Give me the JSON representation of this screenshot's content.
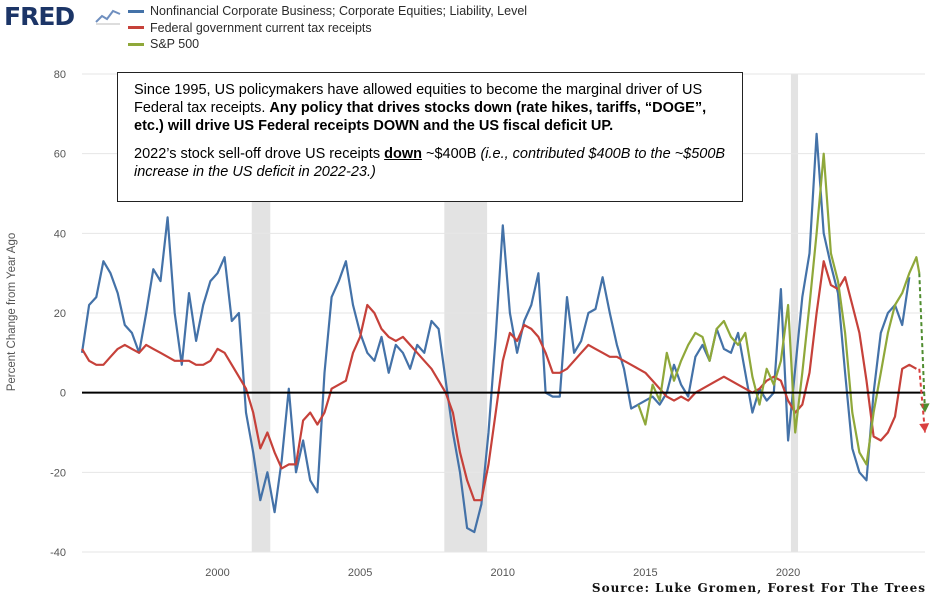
{
  "logo": {
    "text": "FRED"
  },
  "source": "Source: Luke Gromen, Forest For The Trees",
  "annotation": {
    "p1_plain": "Since 1995, US policymakers have allowed equities to become the marginal driver of US Federal tax receipts.  ",
    "p1_bold": "Any policy that drives stocks down (rate hikes, tariffs, “DOGE”, etc.) will drive US Federal receipts DOWN and the US fiscal deficit UP.",
    "p2_a": "2022’s stock sell-off drove US receipts ",
    "p2_u": "down",
    "p2_b": " ~$400B ",
    "p2_i": "(i.e., contributed $400B to the ~$500B increase in the US deficit in 2022-23.)"
  },
  "chart_data": {
    "type": "line",
    "title": "",
    "xlabel": "",
    "ylabel": "Percent Change from Year Ago",
    "xlim": [
      1995.25,
      2024.8
    ],
    "ylim": [
      -40,
      80
    ],
    "x_ticks": [
      2000,
      2005,
      2010,
      2015,
      2020
    ],
    "y_ticks": [
      -40,
      -20,
      0,
      20,
      40,
      60,
      80
    ],
    "zero_line": true,
    "recessions": [
      [
        2001.2,
        2001.85
      ],
      [
        2007.95,
        2009.45
      ],
      [
        2020.1,
        2020.35
      ]
    ],
    "series": [
      {
        "name": "Nonfinancial Corporate Business; Corporate Equities; Liability, Level",
        "color": "#4472a8",
        "points": [
          [
            1995.25,
            10
          ],
          [
            1995.5,
            22
          ],
          [
            1995.75,
            24
          ],
          [
            1996,
            33
          ],
          [
            1996.25,
            30
          ],
          [
            1996.5,
            25
          ],
          [
            1996.75,
            17
          ],
          [
            1997,
            15
          ],
          [
            1997.25,
            10
          ],
          [
            1997.5,
            20
          ],
          [
            1997.75,
            31
          ],
          [
            1998,
            28
          ],
          [
            1998.25,
            44
          ],
          [
            1998.5,
            20
          ],
          [
            1998.75,
            7
          ],
          [
            1999,
            25
          ],
          [
            1999.25,
            13
          ],
          [
            1999.5,
            22
          ],
          [
            1999.75,
            28
          ],
          [
            2000,
            30
          ],
          [
            2000.25,
            34
          ],
          [
            2000.5,
            18
          ],
          [
            2000.75,
            20
          ],
          [
            2001,
            -5
          ],
          [
            2001.25,
            -15
          ],
          [
            2001.5,
            -27
          ],
          [
            2001.75,
            -20
          ],
          [
            2002,
            -30
          ],
          [
            2002.25,
            -17
          ],
          [
            2002.5,
            1
          ],
          [
            2002.75,
            -20
          ],
          [
            2003,
            -12
          ],
          [
            2003.25,
            -22
          ],
          [
            2003.5,
            -25
          ],
          [
            2003.75,
            5
          ],
          [
            2004,
            24
          ],
          [
            2004.25,
            28
          ],
          [
            2004.5,
            33
          ],
          [
            2004.75,
            22
          ],
          [
            2005,
            15
          ],
          [
            2005.25,
            10
          ],
          [
            2005.5,
            8
          ],
          [
            2005.75,
            14
          ],
          [
            2006,
            5
          ],
          [
            2006.25,
            12
          ],
          [
            2006.5,
            10
          ],
          [
            2006.75,
            6
          ],
          [
            2007,
            12
          ],
          [
            2007.25,
            10
          ],
          [
            2007.5,
            18
          ],
          [
            2007.75,
            16
          ],
          [
            2008,
            3
          ],
          [
            2008.25,
            -10
          ],
          [
            2008.5,
            -20
          ],
          [
            2008.75,
            -34
          ],
          [
            2009,
            -35
          ],
          [
            2009.25,
            -28
          ],
          [
            2009.5,
            -10
          ],
          [
            2009.75,
            14
          ],
          [
            2010,
            42
          ],
          [
            2010.25,
            20
          ],
          [
            2010.5,
            10
          ],
          [
            2010.75,
            18
          ],
          [
            2011,
            22
          ],
          [
            2011.25,
            30
          ],
          [
            2011.5,
            0
          ],
          [
            2011.75,
            -1
          ],
          [
            2012,
            -1
          ],
          [
            2012.25,
            24
          ],
          [
            2012.5,
            10
          ],
          [
            2012.75,
            13
          ],
          [
            2013,
            20
          ],
          [
            2013.25,
            21
          ],
          [
            2013.5,
            29
          ],
          [
            2013.75,
            20
          ],
          [
            2014,
            12
          ],
          [
            2014.25,
            6
          ],
          [
            2014.5,
            -4
          ],
          [
            2014.75,
            -3
          ],
          [
            2015,
            -2
          ],
          [
            2015.25,
            -1
          ],
          [
            2015.5,
            -3
          ],
          [
            2015.75,
            0
          ],
          [
            2016,
            7
          ],
          [
            2016.25,
            2
          ],
          [
            2016.5,
            -1
          ],
          [
            2016.75,
            9
          ],
          [
            2017,
            12
          ],
          [
            2017.25,
            8
          ],
          [
            2017.5,
            16
          ],
          [
            2017.75,
            11
          ],
          [
            2018,
            10
          ],
          [
            2018.25,
            15
          ],
          [
            2018.5,
            5
          ],
          [
            2018.75,
            -5
          ],
          [
            2019,
            1
          ],
          [
            2019.25,
            -2
          ],
          [
            2019.5,
            0
          ],
          [
            2019.75,
            26
          ],
          [
            2020,
            -12
          ],
          [
            2020.25,
            6
          ],
          [
            2020.5,
            24
          ],
          [
            2020.75,
            35
          ],
          [
            2021,
            65
          ],
          [
            2021.25,
            40
          ],
          [
            2021.5,
            32
          ],
          [
            2021.75,
            25
          ],
          [
            2022,
            5
          ],
          [
            2022.25,
            -14
          ],
          [
            2022.5,
            -20
          ],
          [
            2022.75,
            -22
          ],
          [
            2023,
            0
          ],
          [
            2023.25,
            15
          ],
          [
            2023.5,
            20
          ],
          [
            2023.75,
            22
          ],
          [
            2024,
            17
          ],
          [
            2024.25,
            29
          ]
        ]
      },
      {
        "name": "Federal government current tax receipts",
        "color": "#c6413a",
        "points": [
          [
            1995.25,
            11
          ],
          [
            1995.5,
            8
          ],
          [
            1995.75,
            7
          ],
          [
            1996,
            7
          ],
          [
            1996.25,
            9
          ],
          [
            1996.5,
            11
          ],
          [
            1996.75,
            12
          ],
          [
            1997,
            11
          ],
          [
            1997.25,
            10
          ],
          [
            1997.5,
            12
          ],
          [
            1997.75,
            11
          ],
          [
            1998,
            10
          ],
          [
            1998.25,
            9
          ],
          [
            1998.5,
            8
          ],
          [
            1998.75,
            8
          ],
          [
            1999,
            8
          ],
          [
            1999.25,
            7
          ],
          [
            1999.5,
            7
          ],
          [
            1999.75,
            8
          ],
          [
            2000,
            11
          ],
          [
            2000.25,
            10
          ],
          [
            2000.5,
            7
          ],
          [
            2000.75,
            4
          ],
          [
            2001,
            1
          ],
          [
            2001.25,
            -5
          ],
          [
            2001.5,
            -14
          ],
          [
            2001.75,
            -10
          ],
          [
            2002,
            -15
          ],
          [
            2002.25,
            -19
          ],
          [
            2002.5,
            -18
          ],
          [
            2002.75,
            -18
          ],
          [
            2003,
            -7
          ],
          [
            2003.25,
            -5
          ],
          [
            2003.5,
            -8
          ],
          [
            2003.75,
            -5
          ],
          [
            2004,
            1
          ],
          [
            2004.25,
            2
          ],
          [
            2004.5,
            3
          ],
          [
            2004.75,
            10
          ],
          [
            2005,
            14
          ],
          [
            2005.25,
            22
          ],
          [
            2005.5,
            20
          ],
          [
            2005.75,
            16
          ],
          [
            2006,
            14
          ],
          [
            2006.25,
            13
          ],
          [
            2006.5,
            14
          ],
          [
            2006.75,
            12
          ],
          [
            2007,
            10
          ],
          [
            2007.25,
            8
          ],
          [
            2007.5,
            6
          ],
          [
            2007.75,
            3
          ],
          [
            2008,
            0
          ],
          [
            2008.25,
            -5
          ],
          [
            2008.5,
            -15
          ],
          [
            2008.75,
            -22
          ],
          [
            2009,
            -27
          ],
          [
            2009.25,
            -27
          ],
          [
            2009.5,
            -18
          ],
          [
            2009.75,
            -5
          ],
          [
            2010,
            8
          ],
          [
            2010.25,
            15
          ],
          [
            2010.5,
            13
          ],
          [
            2010.75,
            17
          ],
          [
            2011,
            16
          ],
          [
            2011.25,
            14
          ],
          [
            2011.5,
            10
          ],
          [
            2011.75,
            5
          ],
          [
            2012,
            5
          ],
          [
            2012.25,
            6
          ],
          [
            2012.5,
            8
          ],
          [
            2012.75,
            10
          ],
          [
            2013,
            12
          ],
          [
            2013.25,
            11
          ],
          [
            2013.5,
            10
          ],
          [
            2013.75,
            9
          ],
          [
            2014,
            9
          ],
          [
            2014.25,
            8
          ],
          [
            2014.5,
            7
          ],
          [
            2014.75,
            6
          ],
          [
            2015,
            5
          ],
          [
            2015.25,
            3
          ],
          [
            2015.5,
            1
          ],
          [
            2015.75,
            -1
          ],
          [
            2016,
            -2
          ],
          [
            2016.25,
            -1
          ],
          [
            2016.5,
            -2
          ],
          [
            2016.75,
            0
          ],
          [
            2017,
            1
          ],
          [
            2017.25,
            2
          ],
          [
            2017.5,
            3
          ],
          [
            2017.75,
            4
          ],
          [
            2018,
            3
          ],
          [
            2018.25,
            2
          ],
          [
            2018.5,
            1
          ],
          [
            2018.75,
            0
          ],
          [
            2019,
            1
          ],
          [
            2019.25,
            3
          ],
          [
            2019.5,
            4
          ],
          [
            2019.75,
            3
          ],
          [
            2020,
            -2
          ],
          [
            2020.25,
            -5
          ],
          [
            2020.5,
            -3
          ],
          [
            2020.75,
            5
          ],
          [
            2021,
            20
          ],
          [
            2021.25,
            33
          ],
          [
            2021.5,
            27
          ],
          [
            2021.75,
            26
          ],
          [
            2022,
            29
          ],
          [
            2022.25,
            22
          ],
          [
            2022.5,
            15
          ],
          [
            2022.75,
            3
          ],
          [
            2023,
            -11
          ],
          [
            2023.25,
            -12
          ],
          [
            2023.5,
            -10
          ],
          [
            2023.75,
            -6
          ],
          [
            2024,
            6
          ],
          [
            2024.25,
            7
          ],
          [
            2024.5,
            6
          ]
        ]
      },
      {
        "name": "S&P 500",
        "color": "#8fa83a",
        "points": [
          [
            2014.75,
            -3
          ],
          [
            2015,
            -8
          ],
          [
            2015.25,
            2
          ],
          [
            2015.5,
            -2
          ],
          [
            2015.75,
            10
          ],
          [
            2016,
            3
          ],
          [
            2016.25,
            8
          ],
          [
            2016.5,
            12
          ],
          [
            2016.75,
            15
          ],
          [
            2017,
            14
          ],
          [
            2017.25,
            8
          ],
          [
            2017.5,
            16
          ],
          [
            2017.75,
            18
          ],
          [
            2018,
            14
          ],
          [
            2018.25,
            12
          ],
          [
            2018.5,
            15
          ],
          [
            2018.75,
            4
          ],
          [
            2019,
            -3
          ],
          [
            2019.25,
            6
          ],
          [
            2019.5,
            2
          ],
          [
            2019.75,
            8
          ],
          [
            2020,
            22
          ],
          [
            2020.25,
            -10
          ],
          [
            2020.5,
            5
          ],
          [
            2020.75,
            22
          ],
          [
            2021,
            40
          ],
          [
            2021.25,
            60
          ],
          [
            2021.5,
            35
          ],
          [
            2021.75,
            28
          ],
          [
            2022,
            15
          ],
          [
            2022.25,
            -5
          ],
          [
            2022.5,
            -15
          ],
          [
            2022.75,
            -18
          ],
          [
            2023,
            -5
          ],
          [
            2023.25,
            5
          ],
          [
            2023.5,
            15
          ],
          [
            2023.75,
            22
          ],
          [
            2024,
            25
          ],
          [
            2024.25,
            30
          ],
          [
            2024.5,
            34
          ],
          [
            2024.6,
            30
          ]
        ]
      }
    ],
    "projections": [
      {
        "color": "#4e8c2e",
        "from": [
          2024.6,
          30
        ],
        "to": [
          2024.8,
          -5
        ]
      },
      {
        "color": "#d94040",
        "from": [
          2024.6,
          6
        ],
        "to": [
          2024.8,
          -10
        ]
      }
    ]
  }
}
